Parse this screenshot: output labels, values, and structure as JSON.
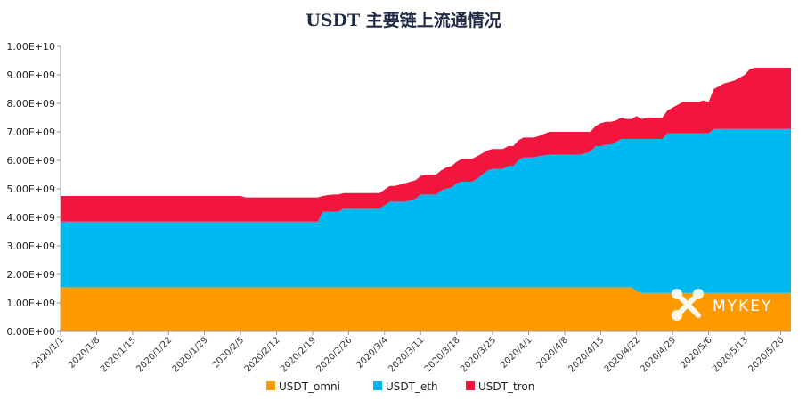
{
  "chart_data": {
    "type": "area",
    "stacked": true,
    "title": "USDT 主要链上流通情况",
    "xlabel": "",
    "ylabel": "",
    "ylim": [
      0,
      10000000000
    ],
    "yticks": [
      0,
      1000000000,
      2000000000,
      3000000000,
      4000000000,
      5000000000,
      6000000000,
      7000000000,
      8000000000,
      9000000000,
      10000000000
    ],
    "ytick_labels": [
      "0.00E+00",
      "1.00E+09",
      "2.00E+09",
      "3.00E+09",
      "4.00E+09",
      "5.00E+09",
      "6.00E+09",
      "7.00E+09",
      "8.00E+09",
      "9.00E+09",
      "1.00E+10"
    ],
    "x_start": "2020/1/1",
    "x_end": "2020/5/22",
    "x_tick_labels": [
      "2020/1/1",
      "2020/1/8",
      "2020/1/15",
      "2020/1/22",
      "2020/1/29",
      "2020/2/5",
      "2020/2/12",
      "2020/2/19",
      "2020/2/26",
      "2020/3/4",
      "2020/3/11",
      "2020/3/18",
      "2020/3/25",
      "2020/4/1",
      "2020/4/8",
      "2020/4/15",
      "2020/4/22",
      "2020/4/29",
      "2020/5/6",
      "2020/5/13",
      "2020/5/20"
    ],
    "x": [
      "2020/1/1",
      "2020/1/31",
      "2020/2/1",
      "2020/2/5",
      "2020/2/6",
      "2020/2/15",
      "2020/2/18",
      "2020/2/19",
      "2020/2/20",
      "2020/2/21",
      "2020/2/22",
      "2020/2/23",
      "2020/2/24",
      "2020/2/25",
      "2020/2/26",
      "2020/3/1",
      "2020/3/3",
      "2020/3/5",
      "2020/3/6",
      "2020/3/7",
      "2020/3/8",
      "2020/3/9",
      "2020/3/10",
      "2020/3/11",
      "2020/3/12",
      "2020/3/13",
      "2020/3/14",
      "2020/3/15",
      "2020/3/16",
      "2020/3/17",
      "2020/3/18",
      "2020/3/19",
      "2020/3/20",
      "2020/3/21",
      "2020/3/22",
      "2020/3/23",
      "2020/3/24",
      "2020/3/25",
      "2020/3/26",
      "2020/3/27",
      "2020/3/28",
      "2020/3/29",
      "2020/3/30",
      "2020/3/31",
      "2020/4/1",
      "2020/4/2",
      "2020/4/3",
      "2020/4/5",
      "2020/4/6",
      "2020/4/8",
      "2020/4/11",
      "2020/4/13",
      "2020/4/14",
      "2020/4/15",
      "2020/4/16",
      "2020/4/17",
      "2020/4/18",
      "2020/4/19",
      "2020/4/20",
      "2020/4/21",
      "2020/4/22",
      "2020/4/23",
      "2020/4/24",
      "2020/4/25",
      "2020/4/26",
      "2020/4/27",
      "2020/4/28",
      "2020/4/29",
      "2020/4/30",
      "2020/5/1",
      "2020/5/2",
      "2020/5/3",
      "2020/5/4",
      "2020/5/5",
      "2020/5/6",
      "2020/5/7",
      "2020/5/8",
      "2020/5/9",
      "2020/5/10",
      "2020/5/11",
      "2020/5/12",
      "2020/5/13",
      "2020/5/14",
      "2020/5/15",
      "2020/5/16",
      "2020/5/17",
      "2020/5/18",
      "2020/5/19",
      "2020/5/20",
      "2020/5/21",
      "2020/5/22"
    ],
    "series": [
      {
        "name": "USDT_omni",
        "color": "#FF9900",
        "values": [
          1550000000.0,
          1550000000.0,
          1550000000.0,
          1550000000.0,
          1550000000.0,
          1550000000.0,
          1550000000.0,
          1550000000.0,
          1550000000.0,
          1550000000.0,
          1550000000.0,
          1550000000.0,
          1550000000.0,
          1550000000.0,
          1550000000.0,
          1550000000.0,
          1550000000.0,
          1550000000.0,
          1550000000.0,
          1550000000.0,
          1550000000.0,
          1550000000.0,
          1550000000.0,
          1550000000.0,
          1550000000.0,
          1550000000.0,
          1550000000.0,
          1550000000.0,
          1550000000.0,
          1550000000.0,
          1550000000.0,
          1550000000.0,
          1550000000.0,
          1550000000.0,
          1550000000.0,
          1550000000.0,
          1550000000.0,
          1550000000.0,
          1550000000.0,
          1550000000.0,
          1550000000.0,
          1550000000.0,
          1550000000.0,
          1550000000.0,
          1550000000.0,
          1550000000.0,
          1550000000.0,
          1550000000.0,
          1550000000.0,
          1550000000.0,
          1550000000.0,
          1550000000.0,
          1550000000.0,
          1550000000.0,
          1550000000.0,
          1550000000.0,
          1550000000.0,
          1550000000.0,
          1550000000.0,
          1550000000.0,
          1400000000.0,
          1350000000.0,
          1350000000.0,
          1350000000.0,
          1350000000.0,
          1350000000.0,
          1350000000.0,
          1350000000.0,
          1350000000.0,
          1350000000.0,
          1350000000.0,
          1350000000.0,
          1350000000.0,
          1350000000.0,
          1350000000.0,
          1350000000.0,
          1350000000.0,
          1350000000.0,
          1350000000.0,
          1350000000.0,
          1350000000.0,
          1350000000.0,
          1350000000.0,
          1350000000.0,
          1350000000.0,
          1350000000.0,
          1350000000.0,
          1350000000.0,
          1350000000.0,
          1350000000.0,
          1350000000.0
        ]
      },
      {
        "name": "USDT_eth",
        "color": "#00B8F0",
        "values": [
          2300000000.0,
          2300000000.0,
          2300000000.0,
          2300000000.0,
          2300000000.0,
          2300000000.0,
          2300000000.0,
          2300000000.0,
          2300000000.0,
          2650000000.0,
          2650000000.0,
          2650000000.0,
          2650000000.0,
          2750000000.0,
          2750000000.0,
          2750000000.0,
          2750000000.0,
          3000000000.0,
          3000000000.0,
          3000000000.0,
          3000000000.0,
          3050000000.0,
          3100000000.0,
          3250000000.0,
          3250000000.0,
          3250000000.0,
          3250000000.0,
          3400000000.0,
          3450000000.0,
          3500000000.0,
          3650000000.0,
          3700000000.0,
          3700000000.0,
          3700000000.0,
          3800000000.0,
          3950000000.0,
          4100000000.0,
          4150000000.0,
          4150000000.0,
          4150000000.0,
          4250000000.0,
          4250000000.0,
          4450000000.0,
          4550000000.0,
          4550000000.0,
          4550000000.0,
          4600000000.0,
          4650000000.0,
          4650000000.0,
          4650000000.0,
          4650000000.0,
          4750000000.0,
          4950000000.0,
          4950000000.0,
          5000000000.0,
          5000000000.0,
          5100000000.0,
          5200000000.0,
          5200000000.0,
          5200000000.0,
          5350000000.0,
          5400000000.0,
          5400000000.0,
          5400000000.0,
          5400000000.0,
          5400000000.0,
          5600000000.0,
          5600000000.0,
          5600000000.0,
          5600000000.0,
          5600000000.0,
          5600000000.0,
          5600000000.0,
          5600000000.0,
          5600000000.0,
          5750000000.0,
          5750000000.0,
          5750000000.0,
          5750000000.0,
          5750000000.0,
          5750000000.0,
          5750000000.0,
          5750000000.0,
          5750000000.0,
          5750000000.0,
          5750000000.0,
          5750000000.0,
          5750000000.0,
          5750000000.0,
          5750000000.0,
          5750000000.0
        ]
      },
      {
        "name": "USDT_tron",
        "color": "#F2153D",
        "values": [
          900000000.0,
          900000000.0,
          900000000.0,
          900000000.0,
          850000000.0,
          850000000.0,
          850000000.0,
          850000000.0,
          850000000.0,
          550000000.0,
          580000000.0,
          600000000.0,
          600000000.0,
          550000000.0,
          550000000.0,
          550000000.0,
          550000000.0,
          550000000.0,
          550000000.0,
          600000000.0,
          650000000.0,
          650000000.0,
          650000000.0,
          650000000.0,
          700000000.0,
          700000000.0,
          700000000.0,
          700000000.0,
          750000000.0,
          750000000.0,
          750000000.0,
          800000000.0,
          800000000.0,
          800000000.0,
          800000000.0,
          750000000.0,
          700000000.0,
          700000000.0,
          700000000.0,
          700000000.0,
          700000000.0,
          700000000.0,
          700000000.0,
          700000000.0,
          700000000.0,
          700000000.0,
          700000000.0,
          800000000.0,
          800000000.0,
          800000000.0,
          800000000.0,
          700000000.0,
          700000000.0,
          800000000.0,
          800000000.0,
          800000000.0,
          750000000.0,
          750000000.0,
          700000000.0,
          700000000.0,
          800000000.0,
          700000000.0,
          750000000.0,
          750000000.0,
          750000000.0,
          750000000.0,
          800000000.0,
          900000000.0,
          1000000000.0,
          1100000000.0,
          1100000000.0,
          1100000000.0,
          1100000000.0,
          1150000000.0,
          1100000000.0,
          1400000000.0,
          1500000000.0,
          1600000000.0,
          1650000000.0,
          1700000000.0,
          1800000000.0,
          1900000000.0,
          2100000000.0,
          2150000000.0,
          2150000000.0,
          2150000000.0,
          2150000000.0,
          2150000000.0,
          2150000000.0,
          2150000000.0,
          2150000000.0
        ]
      }
    ],
    "legend_position": "bottom-center",
    "grid": false
  },
  "legend": {
    "items": [
      "USDT_omni",
      "USDT_eth",
      "USDT_tron"
    ]
  },
  "watermark": {
    "text": "MYKEY",
    "icon": "mykey-logo-icon"
  }
}
